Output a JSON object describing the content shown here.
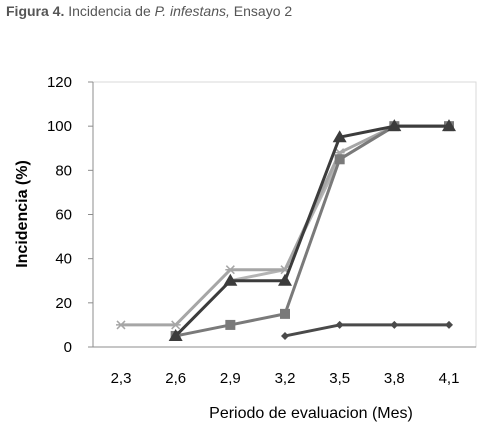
{
  "caption": {
    "label": "Figura 4.",
    "text_before": " Incidencia de ",
    "species": "P. infestans,",
    "text_after": " Ensayo 2"
  },
  "chart_data": {
    "type": "line",
    "title": "",
    "xlabel": "Periodo de evaluacion (Mes)",
    "ylabel": "Incidencia (%)",
    "categories": [
      "2,3",
      "2,6",
      "2,9",
      "3,2",
      "3,5",
      "3,8",
      "4,1"
    ],
    "yticks": [
      "0",
      "20",
      "40",
      "60",
      "80",
      "100",
      "120"
    ],
    "ylim": [
      0,
      120
    ],
    "grid": "none",
    "series": [
      {
        "values": [
          null,
          null,
          null,
          5,
          10,
          10,
          10
        ],
        "marker": "diamond",
        "color": "#4a4a4a"
      },
      {
        "values": [
          null,
          5,
          10,
          15,
          85,
          100,
          100
        ],
        "marker": "square",
        "color": "#7a7a7a"
      },
      {
        "values": [
          null,
          5,
          30,
          30,
          95,
          100,
          100
        ],
        "marker": "triangle",
        "color": "#3c3c3c"
      },
      {
        "values": [
          10,
          10,
          35,
          35,
          88,
          100,
          100
        ],
        "marker": "star",
        "color": "#a6a6a6"
      },
      {
        "values": [
          null,
          5,
          30,
          35,
          85,
          100,
          100
        ],
        "marker": "none",
        "color": "#b4b4b4"
      }
    ]
  }
}
